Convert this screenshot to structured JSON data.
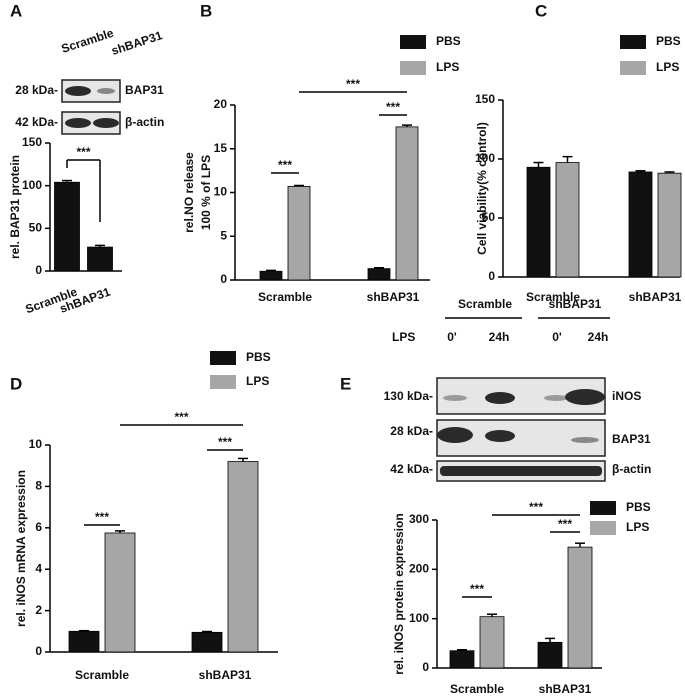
{
  "chart_data": [
    {
      "type": "bar",
      "panel": "A",
      "y_label": [
        "rel. BAP31 protein"
      ],
      "categories": [
        "Scramble",
        "shBAP31"
      ],
      "values": [
        104,
        28
      ],
      "errors": [
        2,
        2
      ],
      "color": "#111111",
      "ylim": [
        0,
        150
      ],
      "yticks": [
        0,
        50,
        100,
        150
      ],
      "annotations": [
        "***"
      ]
    },
    {
      "type": "bar",
      "panel": "B",
      "y_label": [
        "rel.NO release",
        "100 % of LPS"
      ],
      "categories": [
        "Scramble",
        "shBAP31"
      ],
      "series": [
        {
          "name": "PBS",
          "color": "#111111",
          "values": [
            1.0,
            1.3
          ],
          "errors": [
            0.1,
            0.1
          ]
        },
        {
          "name": "LPS",
          "color": "#a6a6a6",
          "values": [
            10.7,
            17.5
          ],
          "errors": [
            0.1,
            0.2
          ]
        }
      ],
      "ylim": [
        0,
        20
      ],
      "yticks": [
        0,
        5,
        10,
        15,
        20
      ],
      "annotations": [
        "***",
        "***",
        "***"
      ]
    },
    {
      "type": "bar",
      "panel": "C",
      "y_label": [
        "Cell viability(% control)"
      ],
      "categories": [
        "Scramble",
        "shBAP31"
      ],
      "series": [
        {
          "name": "PBS",
          "color": "#111111",
          "values": [
            93,
            89
          ],
          "errors": [
            4,
            1
          ]
        },
        {
          "name": "LPS",
          "color": "#a6a6a6",
          "values": [
            97,
            88
          ],
          "errors": [
            5,
            1
          ]
        }
      ],
      "ylim": [
        0,
        150
      ],
      "yticks": [
        0,
        50,
        100,
        150
      ]
    },
    {
      "type": "bar",
      "panel": "D",
      "y_label": [
        "rel. iNOS mRNA expression"
      ],
      "categories": [
        "Scramble",
        "shBAP31"
      ],
      "series": [
        {
          "name": "PBS",
          "color": "#111111",
          "values": [
            1.0,
            0.95
          ],
          "errors": [
            0.03,
            0.04
          ]
        },
        {
          "name": "LPS",
          "color": "#a6a6a6",
          "values": [
            5.75,
            9.2
          ],
          "errors": [
            0.1,
            0.15
          ]
        }
      ],
      "ylim": [
        0,
        10
      ],
      "yticks": [
        0,
        2,
        4,
        6,
        8,
        10
      ],
      "annotations": [
        "***",
        "***",
        "***"
      ]
    },
    {
      "type": "bar",
      "panel": "E",
      "y_label": [
        "rel. iNOS protein expression"
      ],
      "categories": [
        "Scramble",
        "shBAP31"
      ],
      "series": [
        {
          "name": "PBS",
          "color": "#111111",
          "values": [
            35,
            52
          ],
          "errors": [
            2,
            8
          ]
        },
        {
          "name": "LPS",
          "color": "#a6a6a6",
          "values": [
            104,
            245
          ],
          "errors": [
            5,
            8
          ]
        }
      ],
      "ylim": [
        0,
        300
      ],
      "yticks": [
        0,
        100,
        200,
        300
      ],
      "annotations": [
        "***",
        "***",
        "***"
      ]
    }
  ],
  "blots": {
    "A": {
      "lanes": [
        "Scramble",
        "shBAP31"
      ],
      "rows": [
        {
          "size": "28 kDa-",
          "protein": "BAP31"
        },
        {
          "size": "42 kDa-",
          "protein": "β-actin"
        }
      ]
    },
    "E": {
      "groups": [
        "Scramble",
        "shBAP31"
      ],
      "lane_header": "LPS",
      "lanes": [
        "0'",
        "24h",
        "0'",
        "24h"
      ],
      "rows": [
        {
          "size": "130 kDa-",
          "protein": "iNOS"
        },
        {
          "size": "28 kDa-",
          "protein": "BAP31"
        },
        {
          "size": "42 kDa-",
          "protein": "β-actin"
        }
      ]
    }
  }
}
